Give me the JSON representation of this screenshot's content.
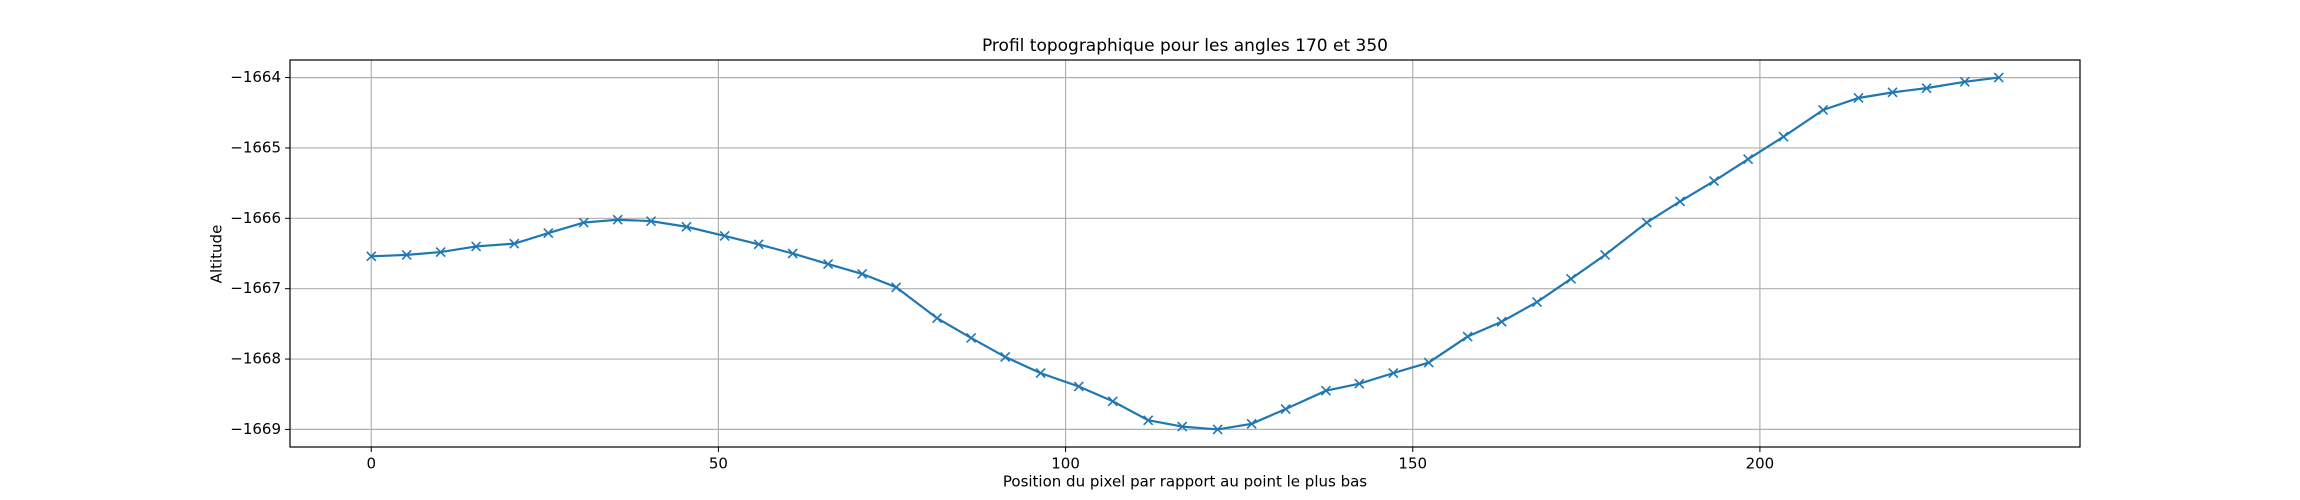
{
  "chart_data": {
    "type": "line",
    "title": "Profil topographique pour les angles 170 et 350",
    "xlabel": "Position du pixel par rapport au point le plus bas",
    "ylabel": "Altitude",
    "x": [
      0,
      5.1,
      10,
      15.1,
      20.6,
      25.5,
      30.6,
      35.5,
      40.3,
      45.4,
      50.9,
      55.8,
      60.7,
      65.8,
      70.7,
      75.6,
      81.5,
      86.4,
      91.3,
      96.4,
      101.9,
      106.8,
      111.9,
      116.8,
      121.9,
      126.8,
      131.7,
      137.5,
      142.3,
      147.2,
      152.3,
      157.9,
      162.8,
      167.9,
      172.8,
      177.7,
      183.7,
      188.5,
      193.4,
      198.3,
      203.4,
      209.1,
      214.2,
      219.1,
      224,
      229.5,
      234.4
    ],
    "series": [
      {
        "color": "#1f77b4",
        "marker": "x",
        "values": [
          -1666.54,
          -1666.52,
          -1666.48,
          -1666.4,
          -1666.36,
          -1666.21,
          -1666.06,
          -1666.02,
          -1666.04,
          -1666.12,
          -1666.25,
          -1666.37,
          -1666.5,
          -1666.65,
          -1666.79,
          -1666.98,
          -1667.42,
          -1667.7,
          -1667.97,
          -1668.2,
          -1668.39,
          -1668.6,
          -1668.87,
          -1668.96,
          -1669.0,
          -1668.92,
          -1668.71,
          -1668.45,
          -1668.35,
          -1668.2,
          -1668.05,
          -1667.68,
          -1667.47,
          -1667.19,
          -1666.86,
          -1666.52,
          -1666.06,
          -1665.76,
          -1665.47,
          -1665.16,
          -1664.84,
          -1664.46,
          -1664.29,
          -1664.21,
          -1664.15,
          -1664.06,
          -1664.0
        ]
      }
    ],
    "xlim": [
      -11.7,
      246.1
    ],
    "ylim": [
      -1669.25,
      -1663.75
    ],
    "xticks": [
      0,
      50,
      100,
      150,
      200
    ],
    "yticks": [
      {
        "value": -1669,
        "label": "−1669"
      },
      {
        "value": -1668,
        "label": "−1668"
      },
      {
        "value": -1667,
        "label": "−1667"
      },
      {
        "value": -1666,
        "label": "−1666"
      },
      {
        "value": -1665,
        "label": "−1665"
      },
      {
        "value": -1664,
        "label": "−1664"
      }
    ],
    "grid": true
  }
}
